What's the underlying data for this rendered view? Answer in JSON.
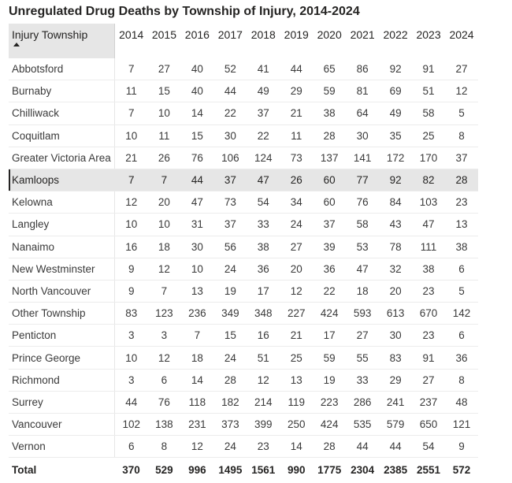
{
  "title": "Unregulated Drug Deaths by Township of Injury, 2014-2024",
  "header": {
    "name_column": "Injury Township",
    "years": [
      "2014",
      "2015",
      "2016",
      "2017",
      "2018",
      "2019",
      "2020",
      "2021",
      "2022",
      "2023",
      "2024"
    ]
  },
  "rows": [
    {
      "name": "Abbotsford",
      "values": [
        "7",
        "27",
        "40",
        "52",
        "41",
        "44",
        "65",
        "86",
        "92",
        "91",
        "27"
      ]
    },
    {
      "name": "Burnaby",
      "values": [
        "11",
        "15",
        "40",
        "44",
        "49",
        "29",
        "59",
        "81",
        "69",
        "51",
        "12"
      ]
    },
    {
      "name": "Chilliwack",
      "values": [
        "7",
        "10",
        "14",
        "22",
        "37",
        "21",
        "38",
        "64",
        "49",
        "58",
        "5"
      ]
    },
    {
      "name": "Coquitlam",
      "values": [
        "10",
        "11",
        "15",
        "30",
        "22",
        "11",
        "28",
        "30",
        "35",
        "25",
        "8"
      ]
    },
    {
      "name": "Greater Victoria Area",
      "values": [
        "21",
        "26",
        "76",
        "106",
        "124",
        "73",
        "137",
        "141",
        "172",
        "170",
        "37"
      ]
    },
    {
      "name": "Kamloops",
      "values": [
        "7",
        "7",
        "44",
        "37",
        "47",
        "26",
        "60",
        "77",
        "92",
        "82",
        "28"
      ],
      "selected": true
    },
    {
      "name": "Kelowna",
      "values": [
        "12",
        "20",
        "47",
        "73",
        "54",
        "34",
        "60",
        "76",
        "84",
        "103",
        "23"
      ]
    },
    {
      "name": "Langley",
      "values": [
        "10",
        "10",
        "31",
        "37",
        "33",
        "24",
        "37",
        "58",
        "43",
        "47",
        "13"
      ]
    },
    {
      "name": "Nanaimo",
      "values": [
        "16",
        "18",
        "30",
        "56",
        "38",
        "27",
        "39",
        "53",
        "78",
        "111",
        "38"
      ]
    },
    {
      "name": "New Westminster",
      "values": [
        "9",
        "12",
        "10",
        "24",
        "36",
        "20",
        "36",
        "47",
        "32",
        "38",
        "6"
      ]
    },
    {
      "name": "North Vancouver",
      "values": [
        "9",
        "7",
        "13",
        "19",
        "17",
        "12",
        "22",
        "18",
        "20",
        "23",
        "5"
      ]
    },
    {
      "name": "Other Township",
      "values": [
        "83",
        "123",
        "236",
        "349",
        "348",
        "227",
        "424",
        "593",
        "613",
        "670",
        "142"
      ]
    },
    {
      "name": "Penticton",
      "values": [
        "3",
        "3",
        "7",
        "15",
        "16",
        "21",
        "17",
        "27",
        "30",
        "23",
        "6"
      ]
    },
    {
      "name": "Prince George",
      "values": [
        "10",
        "12",
        "18",
        "24",
        "51",
        "25",
        "59",
        "55",
        "83",
        "91",
        "36"
      ]
    },
    {
      "name": "Richmond",
      "values": [
        "3",
        "6",
        "14",
        "28",
        "12",
        "13",
        "19",
        "33",
        "29",
        "27",
        "8"
      ]
    },
    {
      "name": "Surrey",
      "values": [
        "44",
        "76",
        "118",
        "182",
        "214",
        "119",
        "223",
        "286",
        "241",
        "237",
        "48"
      ]
    },
    {
      "name": "Vancouver",
      "values": [
        "102",
        "138",
        "231",
        "373",
        "399",
        "250",
        "424",
        "535",
        "579",
        "650",
        "121"
      ]
    },
    {
      "name": "Vernon",
      "values": [
        "6",
        "8",
        "12",
        "24",
        "23",
        "14",
        "28",
        "44",
        "44",
        "54",
        "9"
      ]
    }
  ],
  "total": {
    "label": "Total",
    "values": [
      "370",
      "529",
      "996",
      "1495",
      "1561",
      "990",
      "1775",
      "2304",
      "2385",
      "2551",
      "572"
    ]
  }
}
